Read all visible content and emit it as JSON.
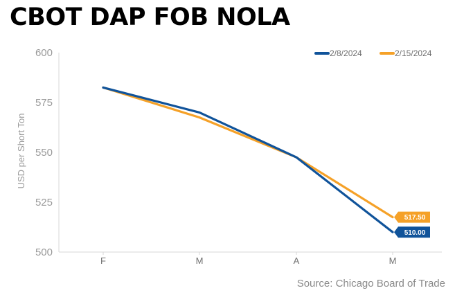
{
  "chart_data": {
    "type": "line",
    "title": "CBOT DAP FOB NOLA",
    "ylabel": "USD per Short Ton",
    "xlabel": "",
    "ylim": [
      500,
      600
    ],
    "yticks": [
      600,
      575,
      550,
      525,
      500
    ],
    "categories": [
      "F",
      "M",
      "A",
      "M"
    ],
    "series": [
      {
        "name": "2/8/2024",
        "color": "#10539a",
        "values": [
          582.5,
          570,
          547.5,
          510
        ],
        "end_label": "510.00"
      },
      {
        "name": "2/15/2024",
        "color": "#f5a128",
        "values": [
          582.5,
          567.5,
          547.5,
          517.5
        ],
        "end_label": "517.50"
      }
    ],
    "legend_position": "top-right",
    "grid": false,
    "source": "Source: Chicago Board of Trade"
  }
}
